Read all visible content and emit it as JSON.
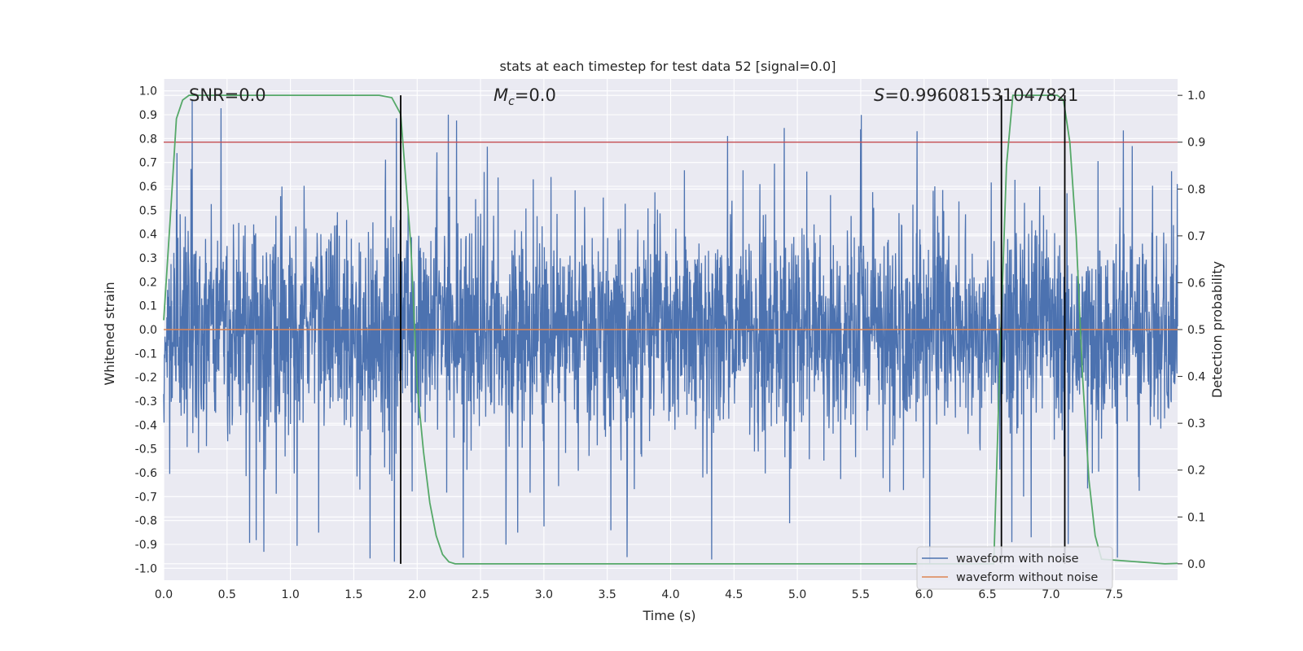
{
  "chart_data": {
    "type": "line",
    "title": "stats at each timestep for test data 52 [signal=0.0]",
    "xlabel": "Time (s)",
    "ylabel": "Whitened strain",
    "y2label": "Detection probability",
    "xlim": [
      0.0,
      8.0
    ],
    "ylim": [
      -1.05,
      1.05
    ],
    "y2lim": [
      -0.035,
      1.035
    ],
    "xticks": [
      "0.0",
      "0.5",
      "1.0",
      "1.5",
      "2.0",
      "2.5",
      "3.0",
      "3.5",
      "4.0",
      "4.5",
      "5.0",
      "5.5",
      "6.0",
      "6.5",
      "7.0",
      "7.5"
    ],
    "yticks": [
      "1.0",
      "0.9",
      "0.8",
      "0.7",
      "0.6",
      "0.5",
      "0.4",
      "0.3",
      "0.2",
      "0.1",
      "0.0",
      "-0.1",
      "-0.2",
      "-0.3",
      "-0.4",
      "-0.5",
      "-0.6",
      "-0.7",
      "-0.8",
      "-0.9",
      "-1.0"
    ],
    "y2ticks": [
      "0.0",
      "0.1",
      "0.2",
      "0.3",
      "0.4",
      "0.5",
      "0.6",
      "0.7",
      "0.8",
      "0.9",
      "1.0"
    ],
    "annotations": {
      "snr": "SNR=0.0",
      "mc_symbol": "M",
      "mc_sub": "c",
      "mc_value": "=0.0",
      "s_symbol": "S",
      "s_value": "=0.996081531047821"
    },
    "legend": {
      "location": "lower right",
      "entries": [
        "waveform with noise",
        "waveform without noise"
      ]
    },
    "threshold": 0.9,
    "boundaries": [
      {
        "t": 1.87,
        "y2_top": 1.0
      },
      {
        "t": 6.61,
        "y2_top": 1.0
      },
      {
        "t": 7.11,
        "y2_top": 1.0
      }
    ],
    "series": [
      {
        "name": "waveform with noise",
        "axis": "left",
        "color": "#4c72b0",
        "description": "dense whitened noise, amplitude envelope about ±0.45 with spikes up to ±1.0",
        "envelope": 0.46,
        "seed": 52,
        "n_points": 3200
      },
      {
        "name": "waveform without noise",
        "axis": "left",
        "color": "#dd8452",
        "x": [
          0.0,
          8.0
        ],
        "y": [
          0.0,
          0.0
        ]
      },
      {
        "name": "detection probability",
        "axis": "right",
        "color": "#55a868",
        "x": [
          0.0,
          0.05,
          0.1,
          0.15,
          0.2,
          0.3,
          1.7,
          1.8,
          1.87,
          1.95,
          2.0,
          2.05,
          2.1,
          2.15,
          2.2,
          2.25,
          2.3,
          3.0,
          6.3,
          6.55,
          6.6,
          6.65,
          6.7,
          7.05,
          7.1,
          7.15,
          7.2,
          7.25,
          7.3,
          7.35,
          7.4,
          7.9,
          8.0
        ],
        "y": [
          0.52,
          0.73,
          0.95,
          0.99,
          1.0,
          1.0,
          1.0,
          0.995,
          0.96,
          0.68,
          0.38,
          0.24,
          0.13,
          0.06,
          0.02,
          0.004,
          0.0,
          0.0,
          0.0,
          0.0,
          0.45,
          0.85,
          1.0,
          1.0,
          0.99,
          0.9,
          0.7,
          0.4,
          0.18,
          0.06,
          0.01,
          0.0,
          0.001
        ]
      }
    ]
  }
}
